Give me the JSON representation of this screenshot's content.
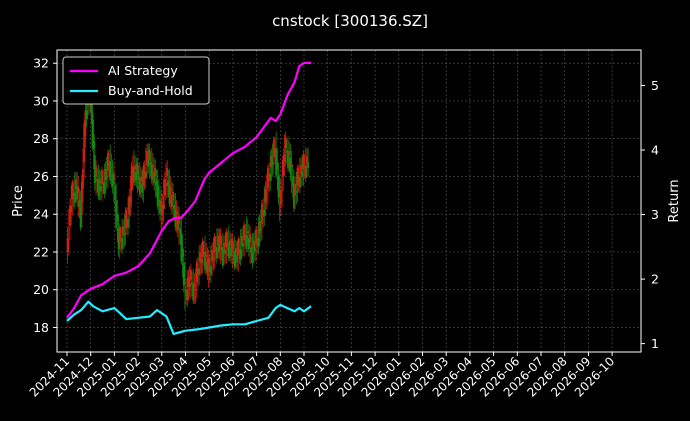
{
  "chart_data": {
    "type": "line",
    "title": "cnstock [300136.SZ]",
    "ylabel_left": "Price",
    "ylabel_right": "Return",
    "ylim_left": [
      16.7,
      32.7
    ],
    "ylim_right": [
      0.87,
      5.55
    ],
    "yticks_left": [
      18,
      20,
      22,
      24,
      26,
      28,
      30,
      32
    ],
    "yticks_right": [
      1,
      2,
      3,
      4,
      5
    ],
    "xticks": [
      "2024-11",
      "2024-12",
      "2025-01",
      "2025-02",
      "2025-03",
      "2025-04",
      "2025-05",
      "2025-06",
      "2025-07",
      "2025-08",
      "2025-09",
      "2025-10",
      "2025-11",
      "2025-12",
      "2026-01",
      "2026-02",
      "2026-03",
      "2026-04",
      "2026-05",
      "2026-06",
      "2026-07",
      "2026-08",
      "2026-09",
      "2026-10"
    ],
    "grid": true,
    "legend_position": "top-left",
    "colors": {
      "ai": "#ff00ff",
      "bh": "#22eeff",
      "up": "#d02010",
      "down": "#118811",
      "grid": "#555555"
    },
    "series": [
      {
        "name": "AI Strategy",
        "axis": "right",
        "x": [
          0.0,
          0.3,
          0.6,
          1.0,
          1.5,
          2.0,
          2.5,
          3.0,
          3.5,
          4.0,
          4.3,
          4.6,
          4.8,
          5.0,
          5.4,
          5.8,
          6.0,
          6.5,
          7.0,
          7.5,
          8.0,
          8.3,
          8.6,
          8.8,
          9.0,
          9.3,
          9.6,
          9.8,
          10.0,
          10.3
        ],
        "values": [
          1.4,
          1.55,
          1.75,
          1.85,
          1.92,
          2.05,
          2.1,
          2.2,
          2.4,
          2.75,
          2.9,
          2.95,
          2.95,
          3.02,
          3.2,
          3.55,
          3.65,
          3.8,
          3.95,
          4.05,
          4.2,
          4.35,
          4.5,
          4.45,
          4.55,
          4.85,
          5.05,
          5.3,
          5.35,
          5.35
        ]
      },
      {
        "name": "Buy-and-Hold",
        "axis": "right",
        "x": [
          0.0,
          0.3,
          0.6,
          0.9,
          1.1,
          1.5,
          2.0,
          2.5,
          3.0,
          3.5,
          3.8,
          4.2,
          4.5,
          4.8,
          5.0,
          5.5,
          6.0,
          6.5,
          7.0,
          7.5,
          8.0,
          8.5,
          8.8,
          9.0,
          9.3,
          9.6,
          9.8,
          10.0,
          10.3
        ],
        "values": [
          1.35,
          1.45,
          1.52,
          1.65,
          1.58,
          1.5,
          1.55,
          1.38,
          1.4,
          1.42,
          1.52,
          1.42,
          1.15,
          1.18,
          1.2,
          1.22,
          1.25,
          1.28,
          1.3,
          1.3,
          1.35,
          1.4,
          1.55,
          1.6,
          1.55,
          1.5,
          1.55,
          1.5,
          1.58
        ]
      }
    ],
    "price_candles": {
      "axis": "left",
      "x": [
        0.0,
        0.2,
        0.4,
        0.6,
        0.8,
        1.0,
        1.2,
        1.4,
        1.6,
        1.8,
        2.0,
        2.2,
        2.4,
        2.6,
        2.8,
        3.0,
        3.2,
        3.4,
        3.6,
        3.8,
        4.0,
        4.2,
        4.4,
        4.6,
        4.8,
        5.0,
        5.2,
        5.4,
        5.6,
        5.8,
        6.0,
        6.2,
        6.4,
        6.6,
        6.8,
        7.0,
        7.2,
        7.4,
        7.6,
        7.8,
        8.0,
        8.2,
        8.4,
        8.6,
        8.8,
        9.0,
        9.2,
        9.4,
        9.6,
        9.8,
        10.0,
        10.2
      ],
      "values": [
        22.0,
        24.8,
        25.5,
        24.0,
        29.5,
        30.5,
        26.0,
        25.5,
        25.8,
        26.8,
        25.5,
        22.5,
        23.0,
        24.0,
        26.5,
        26.0,
        25.5,
        27.0,
        26.5,
        25.5,
        24.0,
        26.0,
        25.0,
        24.0,
        23.0,
        19.8,
        20.5,
        20.0,
        21.5,
        22.0,
        21.0,
        22.0,
        22.5,
        22.0,
        22.5,
        22.0,
        21.8,
        22.5,
        23.0,
        22.0,
        22.5,
        23.5,
        25.0,
        26.5,
        27.5,
        24.5,
        27.5,
        27.0,
        25.0,
        26.0,
        26.5,
        26.8
      ]
    }
  }
}
